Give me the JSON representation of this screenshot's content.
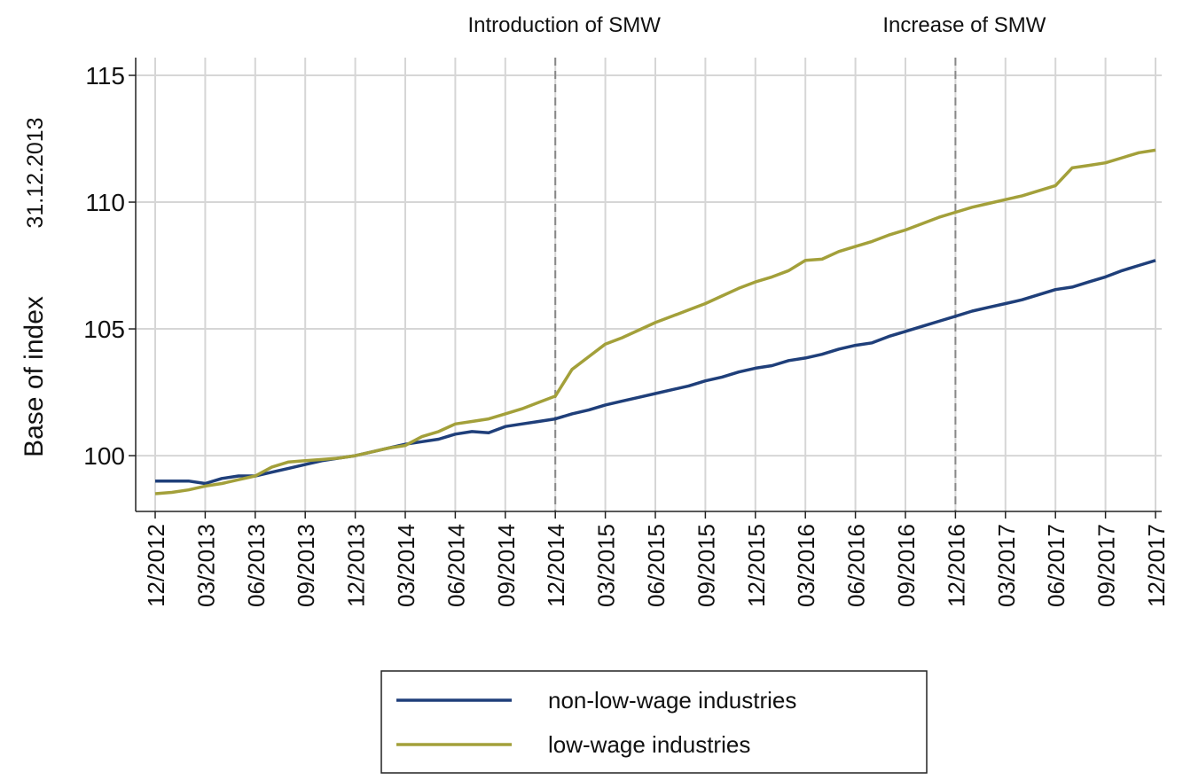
{
  "chart_data": {
    "type": "line",
    "y_label": "Base of index",
    "y_label_note": "31.12.2013",
    "categories": [
      "12/2012",
      null,
      null,
      "03/2013",
      null,
      null,
      "06/2013",
      null,
      null,
      "09/2013",
      null,
      null,
      "12/2013",
      null,
      null,
      "03/2014",
      null,
      null,
      "06/2014",
      null,
      null,
      "09/2014",
      null,
      null,
      "12/2014",
      null,
      null,
      "03/2015",
      null,
      null,
      "06/2015",
      null,
      null,
      "09/2015",
      null,
      null,
      "12/2015",
      null,
      null,
      "03/2016",
      null,
      null,
      "06/2016",
      null,
      null,
      "09/2016",
      null,
      null,
      "12/2016",
      null,
      null,
      "03/2017",
      null,
      null,
      "06/2017",
      null,
      null,
      "09/2017",
      null,
      null,
      "12/2017"
    ],
    "series": [
      {
        "name": "non-low-wage industries",
        "color": "#1f3f7a",
        "values": [
          99.0,
          99.0,
          99.0,
          98.9,
          99.1,
          99.2,
          99.2,
          99.35,
          99.5,
          99.65,
          99.8,
          99.9,
          100.0,
          100.15,
          100.3,
          100.45,
          100.55,
          100.65,
          100.85,
          100.95,
          100.9,
          101.15,
          101.25,
          101.35,
          101.45,
          101.65,
          101.8,
          102.0,
          102.15,
          102.3,
          102.45,
          102.6,
          102.75,
          102.95,
          103.1,
          103.3,
          103.45,
          103.55,
          103.75,
          103.85,
          104.0,
          104.2,
          104.35,
          104.45,
          104.7,
          104.9,
          105.1,
          105.3,
          105.5,
          105.7,
          105.85,
          106.0,
          106.15,
          106.35,
          106.55,
          106.65,
          106.85,
          107.05,
          107.3,
          107.5,
          107.7
        ]
      },
      {
        "name": "low-wage industries",
        "color": "#a3a03a",
        "values": [
          98.5,
          98.55,
          98.65,
          98.8,
          98.9,
          99.05,
          99.2,
          99.55,
          99.75,
          99.8,
          99.85,
          99.9,
          100.0,
          100.15,
          100.3,
          100.4,
          100.75,
          100.95,
          101.25,
          101.35,
          101.45,
          101.65,
          101.85,
          102.1,
          102.35,
          103.4,
          103.9,
          104.4,
          104.65,
          104.95,
          105.25,
          105.5,
          105.75,
          106.0,
          106.3,
          106.6,
          106.85,
          107.05,
          107.3,
          107.7,
          107.75,
          108.05,
          108.25,
          108.45,
          108.7,
          108.9,
          109.15,
          109.4,
          109.6,
          109.8,
          109.95,
          110.1,
          110.25,
          110.45,
          110.65,
          111.35,
          111.45,
          111.55,
          111.75,
          111.95,
          112.05
        ]
      }
    ],
    "ylim": [
      97.8,
      115.7
    ],
    "yticks": [
      100,
      105,
      110,
      115
    ],
    "grid": true,
    "annotations": [
      {
        "text": "Introduction of SMW",
        "at": "12/2014"
      },
      {
        "text": "Increase of SMW",
        "at": "12/2016"
      }
    ]
  }
}
